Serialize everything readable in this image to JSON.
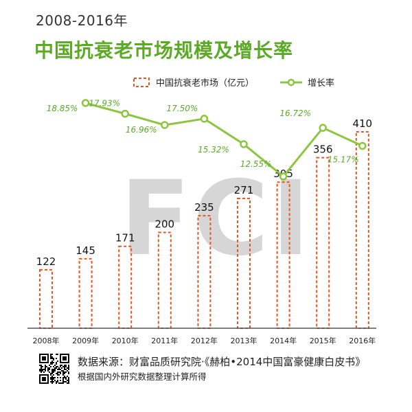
{
  "header": {
    "subtitle": "2008-2016年",
    "title": "中国抗衰老市场规模及增长率"
  },
  "watermark": "FCI",
  "colors": {
    "bar": "#e8541e",
    "line": "#8cc63f",
    "title": "#5aaa24",
    "growth_label": "#5aaa24",
    "watermark": "#d6d6d6"
  },
  "chart_data": {
    "type": "bar",
    "categories": [
      "2008年",
      "2009年",
      "2010年",
      "2011年",
      "2012年",
      "2013年",
      "2014年",
      "2015年",
      "2016年"
    ],
    "series": [
      {
        "name": "中国抗衰老市场（亿元）",
        "type": "bar",
        "values": [
          122,
          145,
          171,
          200,
          235,
          271,
          305,
          356,
          410
        ],
        "labels": [
          "122",
          "145",
          "171",
          "200",
          "235",
          "271",
          "305",
          "356",
          "410"
        ]
      },
      {
        "name": "增长率",
        "type": "line",
        "values": [
          null,
          18.85,
          17.93,
          16.96,
          17.5,
          15.32,
          12.55,
          16.72,
          15.17
        ],
        "labels": [
          "",
          "18.85%",
          "17.93%",
          "16.96%",
          "17.50%",
          "15.32%",
          "12.55%",
          "16.72%",
          "15.17%"
        ]
      }
    ],
    "legend_position": "top-right",
    "grid": false
  },
  "footer": {
    "source_line1": "数据来源：财富品质研究院·《赫柏•2014中国富豪健康白皮书》",
    "source_line2": "根据国内外研究数据整理计算所得"
  }
}
